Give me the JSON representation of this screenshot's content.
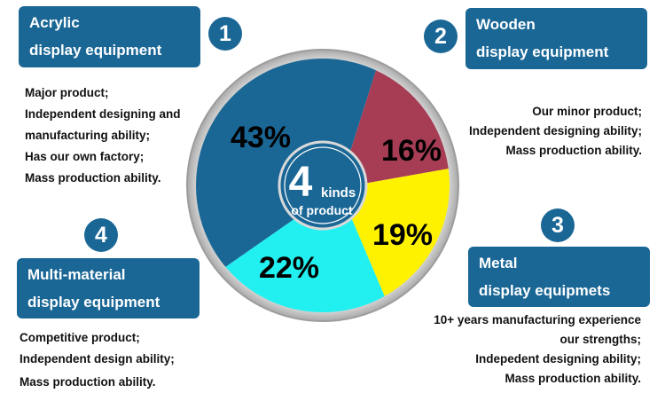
{
  "colors": {
    "label_bg": "#1a6796"
  },
  "chart_data": {
    "type": "pie",
    "categories": [
      "Acrylic display equipment",
      "Wooden display equipment",
      "Metal display equipmets",
      "Multi-material display equipment"
    ],
    "values": [
      43,
      16,
      19,
      22
    ],
    "labels": [
      "43%",
      "16%",
      "19%",
      "22%"
    ],
    "colors": [
      "#1a6796",
      "#a63d55",
      "#fff200",
      "#22f0f0"
    ],
    "center": {
      "big": "4",
      "line1": "kinds",
      "line2": "of product"
    }
  },
  "sections": [
    {
      "number": "1",
      "title": [
        "Acrylic",
        "display equipment"
      ],
      "lines": [
        "Major product;",
        "Independent designing and",
        "manufacturing ability;",
        "Has our own factory;",
        "Mass production ability."
      ]
    },
    {
      "number": "2",
      "title": [
        "Wooden",
        "display equipment"
      ],
      "lines": [
        "Our minor product;",
        "Independent designing ability;",
        "Mass production ability."
      ]
    },
    {
      "number": "3",
      "title": [
        "Metal",
        "display equipmets"
      ],
      "lines": [
        "10+ years manufacturing experience",
        "our strengths;",
        "Indepedent designing ability;",
        "Mass production ability."
      ]
    },
    {
      "number": "4",
      "title": [
        "Multi-material",
        "display equipment"
      ],
      "lines": [
        "Competitive product;",
        "Independent design ability;",
        "Mass production ability."
      ]
    }
  ]
}
